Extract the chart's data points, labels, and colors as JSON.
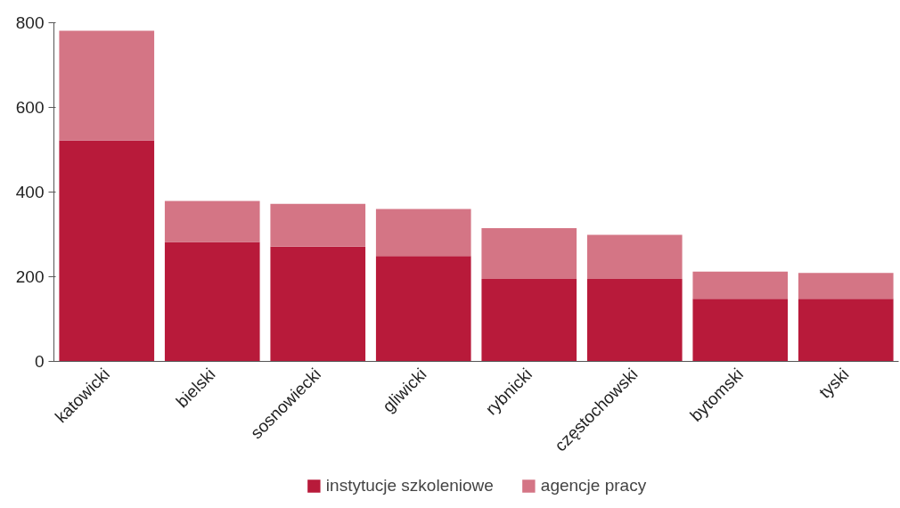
{
  "chart_data": {
    "type": "bar",
    "stacked": true,
    "categories": [
      "katowicki",
      "bielski",
      "sosnowiecki",
      "gliwicki",
      "rybnicki",
      "częstochowski",
      "bytomski",
      "tyski"
    ],
    "series": [
      {
        "name": "instytucje szkoleniowe",
        "color": "#b81a3a",
        "values": [
          522,
          282,
          271,
          249,
          195,
          195,
          148,
          148
        ]
      },
      {
        "name": "agencje pracy",
        "color": "#d47585",
        "values": [
          259,
          97,
          101,
          111,
          120,
          104,
          64,
          61
        ]
      }
    ],
    "ylim": [
      0,
      800
    ],
    "yticks": [
      0,
      200,
      400,
      600,
      800
    ],
    "grid": false,
    "legend": "bottom"
  }
}
